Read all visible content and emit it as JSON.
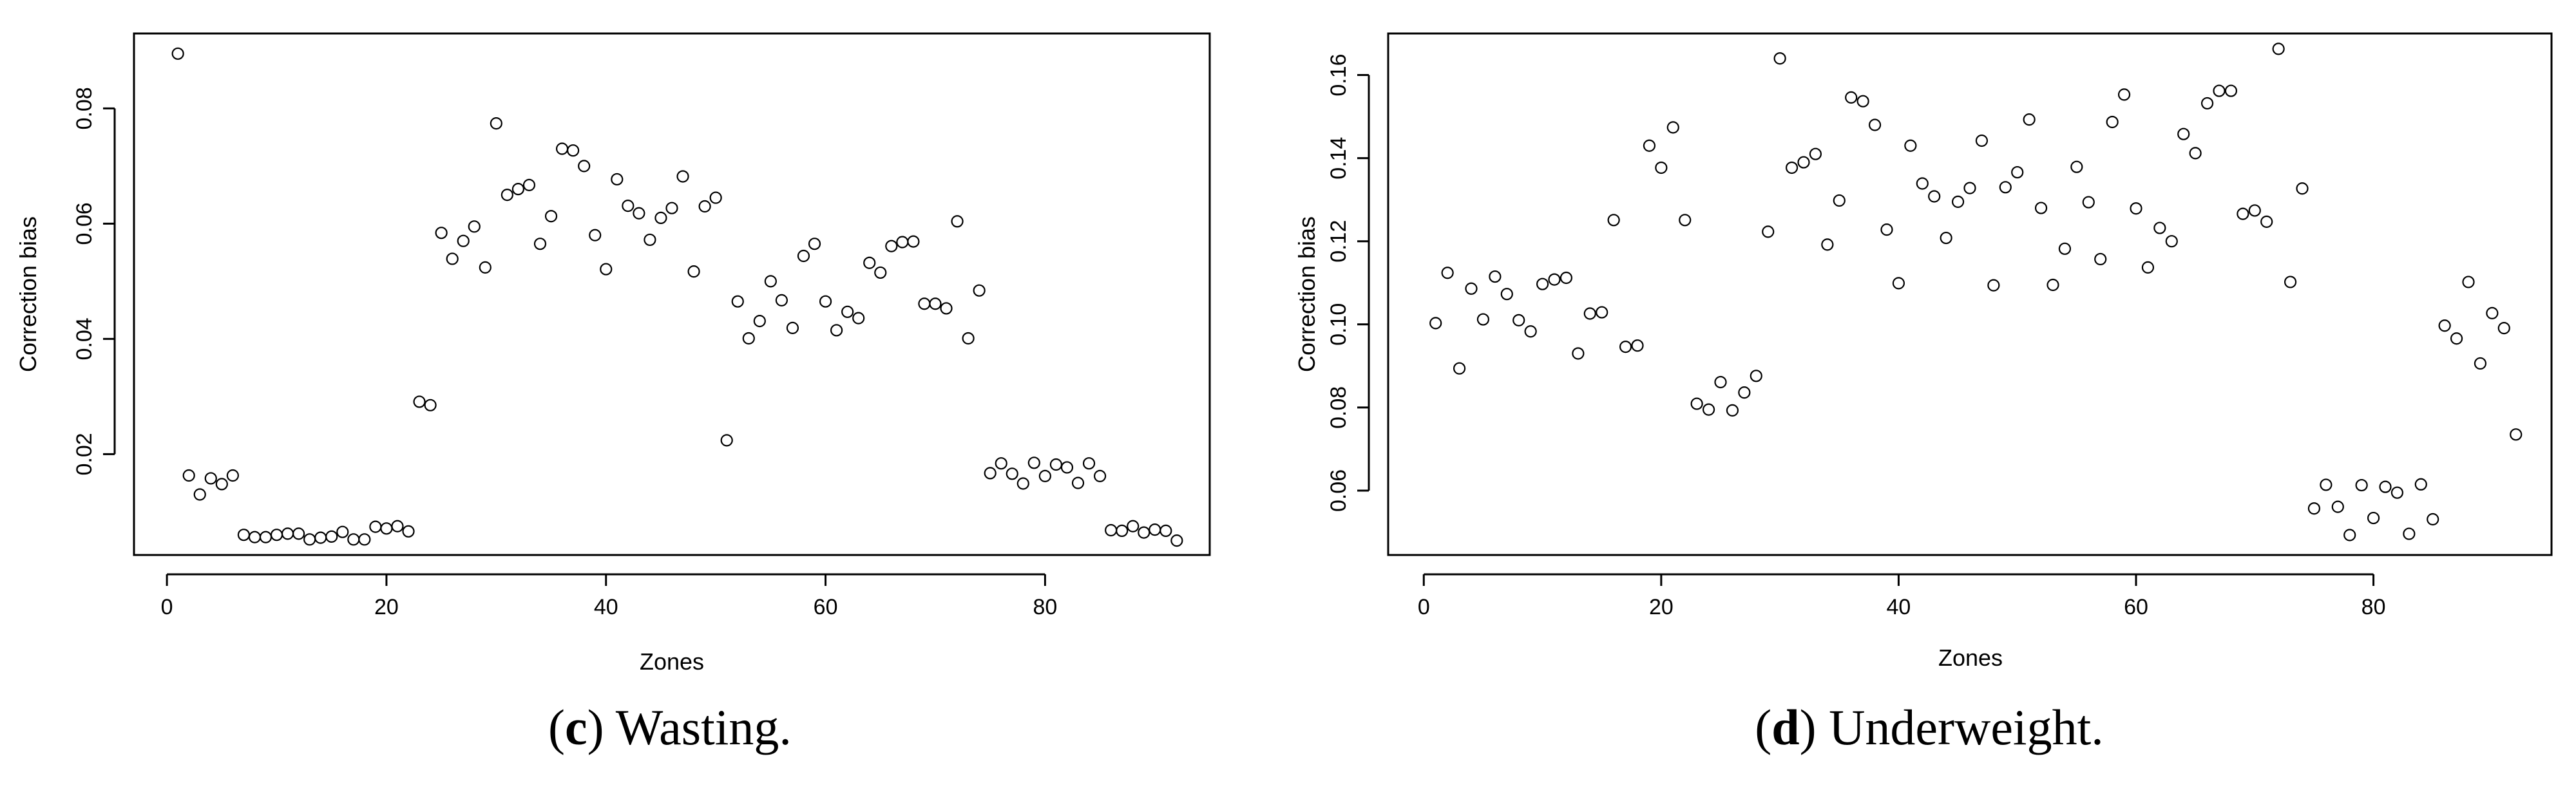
{
  "captions": [
    {
      "letter": "c",
      "text": "Wasting."
    },
    {
      "letter": "d",
      "text": "Underweight."
    }
  ],
  "chart_data": [
    {
      "type": "scatter",
      "title": "",
      "xlabel": "Zones",
      "ylabel": "Correction bias",
      "xlim": [
        -3,
        95
      ],
      "ylim": [
        0.0025,
        0.093
      ],
      "xticks": [
        0,
        20,
        40,
        60,
        80
      ],
      "yticks": [
        0.02,
        0.04,
        0.06,
        0.08
      ],
      "ytick_labels": [
        "0.02",
        "0.04",
        "0.06",
        "0.08"
      ],
      "grid": false,
      "marker": "open-circle",
      "x": [
        1,
        2,
        3,
        4,
        5,
        6,
        7,
        8,
        9,
        10,
        11,
        12,
        13,
        14,
        15,
        16,
        17,
        18,
        19,
        20,
        21,
        22,
        23,
        24,
        25,
        26,
        27,
        28,
        29,
        30,
        31,
        32,
        33,
        34,
        35,
        36,
        37,
        38,
        39,
        40,
        41,
        42,
        43,
        44,
        45,
        46,
        47,
        48,
        49,
        50,
        51,
        52,
        53,
        54,
        55,
        56,
        57,
        58,
        59,
        60,
        61,
        62,
        63,
        64,
        65,
        66,
        67,
        68,
        69,
        70,
        71,
        72,
        73,
        74,
        75,
        76,
        77,
        78,
        79,
        80,
        81,
        82,
        83,
        84,
        85,
        86,
        87,
        88,
        89,
        90,
        91,
        92
      ],
      "y": [
        0.0895,
        0.0163,
        0.013,
        0.0158,
        0.0148,
        0.0163,
        0.006,
        0.0056,
        0.0056,
        0.006,
        0.0062,
        0.0062,
        0.0052,
        0.0055,
        0.0057,
        0.0065,
        0.0052,
        0.0052,
        0.0074,
        0.0071,
        0.0075,
        0.0066,
        0.0291,
        0.0285,
        0.0584,
        0.0539,
        0.057,
        0.0595,
        0.0524,
        0.0774,
        0.065,
        0.066,
        0.0667,
        0.0565,
        0.0613,
        0.073,
        0.0727,
        0.07,
        0.058,
        0.0521,
        0.0677,
        0.0631,
        0.0618,
        0.0572,
        0.061,
        0.0627,
        0.0682,
        0.0517,
        0.063,
        0.0645,
        0.0224,
        0.0465,
        0.0401,
        0.0431,
        0.05,
        0.0467,
        0.0419,
        0.0544,
        0.0565,
        0.0465,
        0.0415,
        0.0447,
        0.0436,
        0.0532,
        0.0515,
        0.0561,
        0.0568,
        0.0569,
        0.0461,
        0.0461,
        0.0453,
        0.0604,
        0.0401,
        0.0484,
        0.0167,
        0.0184,
        0.0166,
        0.0149,
        0.0185,
        0.0162,
        0.0182,
        0.0177,
        0.015,
        0.0184,
        0.0162,
        0.0068,
        0.0067,
        0.0075,
        0.0064,
        0.0069,
        0.0067,
        0.005
      ]
    },
    {
      "type": "scatter",
      "title": "",
      "xlabel": "Zones",
      "ylabel": "Correction bias",
      "xlim": [
        -3,
        95
      ],
      "ylim": [
        0.0445,
        0.17
      ],
      "xticks": [
        0,
        20,
        40,
        60,
        80
      ],
      "yticks": [
        0.06,
        0.08,
        0.1,
        0.12,
        0.14,
        0.16
      ],
      "ytick_labels": [
        "0.06",
        "0.08",
        "0.10",
        "0.12",
        "0.14",
        "0.16"
      ],
      "grid": false,
      "marker": "open-circle",
      "x": [
        1,
        2,
        3,
        4,
        5,
        6,
        7,
        8,
        9,
        10,
        11,
        12,
        13,
        14,
        15,
        16,
        17,
        18,
        19,
        20,
        21,
        22,
        23,
        24,
        25,
        26,
        27,
        28,
        29,
        30,
        31,
        32,
        33,
        34,
        35,
        36,
        37,
        38,
        39,
        40,
        41,
        42,
        43,
        44,
        45,
        46,
        47,
        48,
        49,
        50,
        51,
        52,
        53,
        54,
        55,
        56,
        57,
        58,
        59,
        60,
        61,
        62,
        63,
        64,
        65,
        66,
        67,
        68,
        69,
        70,
        71,
        72,
        73,
        74,
        75,
        76,
        77,
        78,
        79,
        80,
        81,
        82,
        83,
        84,
        85,
        86,
        87,
        88,
        89,
        90,
        91,
        92
      ],
      "y": [
        0.1003,
        0.1124,
        0.0894,
        0.1086,
        0.1012,
        0.1115,
        0.1073,
        0.101,
        0.0983,
        0.1097,
        0.1108,
        0.1112,
        0.093,
        0.1026,
        0.1029,
        0.1251,
        0.0946,
        0.0949,
        0.143,
        0.1377,
        0.1474,
        0.1251,
        0.0809,
        0.0795,
        0.0861,
        0.0793,
        0.0836,
        0.0876,
        0.1223,
        0.164,
        0.1377,
        0.139,
        0.141,
        0.1192,
        0.1298,
        0.1546,
        0.1537,
        0.148,
        0.1228,
        0.1099,
        0.143,
        0.1339,
        0.1308,
        0.1208,
        0.1295,
        0.1328,
        0.1442,
        0.1094,
        0.133,
        0.1366,
        0.1493,
        0.128,
        0.1095,
        0.1182,
        0.1379,
        0.1294,
        0.1157,
        0.1487,
        0.1553,
        0.1279,
        0.1137,
        0.1232,
        0.12,
        0.1458,
        0.1412,
        0.1532,
        0.1562,
        0.1562,
        0.1266,
        0.1274,
        0.1247,
        0.1663,
        0.1102,
        0.1327,
        0.0557,
        0.0614,
        0.0561,
        0.0493,
        0.0613,
        0.0534,
        0.0609,
        0.0595,
        0.0496,
        0.0615,
        0.0531,
        0.0997,
        0.0966,
        0.1102,
        0.0906,
        0.1027,
        0.0991,
        0.0735
      ]
    }
  ]
}
